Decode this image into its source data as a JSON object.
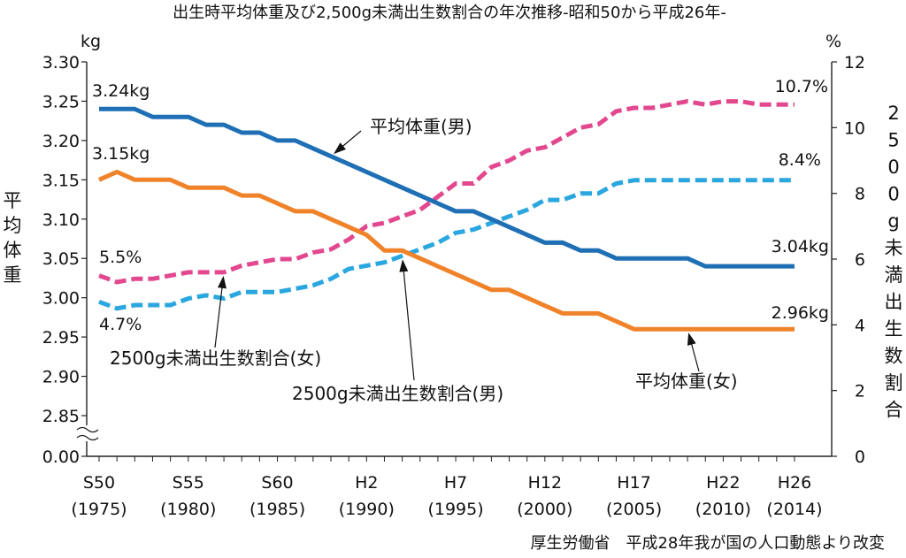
{
  "chart_data": {
    "type": "line",
    "title": "出生時平均体重及び2,500g未満出生数割合の年次推移-昭和50から平成26年-",
    "source": "厚生労働省　平成28年我が国の人口動態より改変",
    "x": [
      1975,
      1976,
      1977,
      1978,
      1979,
      1980,
      1981,
      1982,
      1983,
      1984,
      1985,
      1986,
      1987,
      1988,
      1989,
      1990,
      1991,
      1992,
      1993,
      1994,
      1995,
      1996,
      1997,
      1998,
      1999,
      2000,
      2001,
      2002,
      2003,
      2004,
      2005,
      2006,
      2007,
      2008,
      2009,
      2010,
      2011,
      2012,
      2013,
      2014
    ],
    "x_ticks": [
      {
        "x": 1975,
        "era": "S50",
        "year": "(1975)"
      },
      {
        "x": 1980,
        "era": "S55",
        "year": "(1980)"
      },
      {
        "x": 1985,
        "era": "S60",
        "year": "(1985)"
      },
      {
        "x": 1990,
        "era": "H2",
        "year": "(1990)"
      },
      {
        "x": 1995,
        "era": "H7",
        "year": "(1995)"
      },
      {
        "x": 2000,
        "era": "H12",
        "year": "(2000)"
      },
      {
        "x": 2005,
        "era": "H17",
        "year": "(2005)"
      },
      {
        "x": 2010,
        "era": "H22",
        "year": "(2010)"
      },
      {
        "x": 2014,
        "era": "H26",
        "year": "(2014)"
      }
    ],
    "y_left": {
      "label": "平均体重",
      "unit": "kg",
      "ticks": [
        "3.30",
        "3.25",
        "3.20",
        "3.15",
        "3.10",
        "3.05",
        "3.00",
        "2.95",
        "2.90",
        "2.85"
      ],
      "range": [
        2.85,
        3.3
      ],
      "broken_axis_base": "0.00"
    },
    "y_right": {
      "label": "2500g未満出生数割合",
      "unit": "%",
      "ticks": [
        "12",
        "10",
        "8",
        "6",
        "4",
        "2",
        "0"
      ],
      "range": [
        0,
        12
      ]
    },
    "series": [
      {
        "name": "平均体重(男)",
        "axis": "left",
        "color": "#1f6fb5",
        "dash": false,
        "values": [
          3.24,
          3.24,
          3.24,
          3.23,
          3.23,
          3.23,
          3.22,
          3.22,
          3.21,
          3.21,
          3.2,
          3.2,
          3.19,
          3.18,
          3.17,
          3.16,
          3.15,
          3.14,
          3.13,
          3.12,
          3.11,
          3.11,
          3.1,
          3.09,
          3.08,
          3.07,
          3.07,
          3.06,
          3.06,
          3.05,
          3.05,
          3.05,
          3.05,
          3.05,
          3.04,
          3.04,
          3.04,
          3.04,
          3.04,
          3.04
        ]
      },
      {
        "name": "平均体重(女)",
        "axis": "left",
        "color": "#f0832a",
        "dash": false,
        "values": [
          3.15,
          3.16,
          3.15,
          3.15,
          3.15,
          3.14,
          3.14,
          3.14,
          3.13,
          3.13,
          3.12,
          3.11,
          3.11,
          3.1,
          3.09,
          3.08,
          3.06,
          3.06,
          3.05,
          3.04,
          3.03,
          3.02,
          3.01,
          3.01,
          3.0,
          2.99,
          2.98,
          2.98,
          2.98,
          2.97,
          2.96,
          2.96,
          2.96,
          2.96,
          2.96,
          2.96,
          2.96,
          2.96,
          2.96,
          2.96
        ]
      },
      {
        "name": "2500g未満出生数割合(女)",
        "axis": "right",
        "color": "#e3488f",
        "dash": true,
        "values": [
          5.5,
          5.3,
          5.4,
          5.4,
          5.5,
          5.6,
          5.6,
          5.6,
          5.8,
          5.9,
          6.0,
          6.0,
          6.2,
          6.3,
          6.6,
          7.0,
          7.1,
          7.3,
          7.5,
          7.9,
          8.3,
          8.3,
          8.8,
          9.0,
          9.3,
          9.4,
          9.7,
          10.0,
          10.1,
          10.5,
          10.6,
          10.6,
          10.7,
          10.8,
          10.7,
          10.8,
          10.8,
          10.7,
          10.7,
          10.7
        ]
      },
      {
        "name": "2500g未満出生数割合(男)",
        "axis": "right",
        "color": "#2aa7df",
        "dash": true,
        "values": [
          4.7,
          4.5,
          4.6,
          4.6,
          4.6,
          4.8,
          4.9,
          4.8,
          5.0,
          5.0,
          5.0,
          5.1,
          5.2,
          5.4,
          5.7,
          5.8,
          5.9,
          6.1,
          6.3,
          6.5,
          6.8,
          6.9,
          7.1,
          7.3,
          7.5,
          7.8,
          7.8,
          8.0,
          8.0,
          8.3,
          8.4,
          8.4,
          8.4,
          8.4,
          8.4,
          8.4,
          8.4,
          8.4,
          8.4,
          8.4
        ]
      }
    ],
    "data_labels": [
      {
        "text": "3.24kg",
        "series": "平均体重(男)",
        "x": 1975
      },
      {
        "text": "3.15kg",
        "series": "平均体重(女)",
        "x": 1975
      },
      {
        "text": "5.5%",
        "series": "2500g未満出生数割合(女)",
        "x": 1975
      },
      {
        "text": "4.7%",
        "series": "2500g未満出生数割合(男)",
        "x": 1975
      },
      {
        "text": "10.7%",
        "series": "2500g未満出生数割合(女)",
        "x": 2014
      },
      {
        "text": "8.4%",
        "series": "2500g未満出生数割合(男)",
        "x": 2014
      },
      {
        "text": "3.04kg",
        "series": "平均体重(男)",
        "x": 2014
      },
      {
        "text": "2.96kg",
        "series": "平均体重(女)",
        "x": 2014
      }
    ],
    "annotations": [
      {
        "text": "平均体重(男)",
        "series": "平均体重(男)",
        "x": 1988
      },
      {
        "text": "2500g未満出生数割合(女)",
        "series": "2500g未満出生数割合(女)",
        "x": 1982
      },
      {
        "text": "2500g未満出生数割合(男)",
        "series": "2500g未満出生数割合(男)",
        "x": 1992
      },
      {
        "text": "平均体重(女)",
        "series": "平均体重(女)",
        "x": 2008
      }
    ]
  }
}
